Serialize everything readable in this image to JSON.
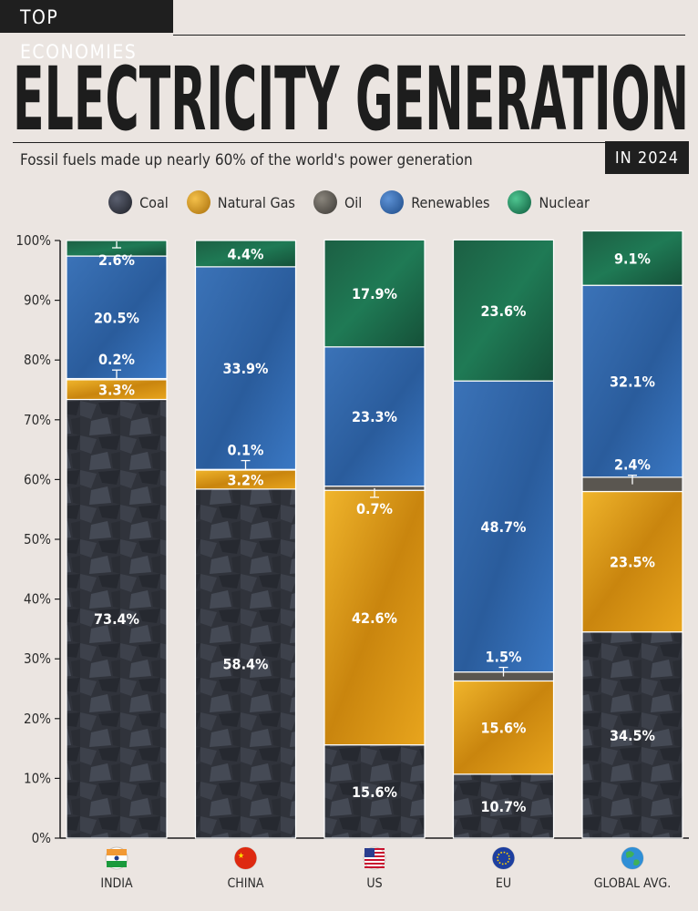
{
  "header": {
    "kicker": "TOP ECONOMIES",
    "title": "ELECTRICITY GENERATION",
    "subtitle": "Fossil fuels made up nearly 60% of the world's power generation",
    "year": "IN 2024"
  },
  "legend": [
    {
      "label": "Coal",
      "color": "#2c2f38",
      "icon": "coal-icon"
    },
    {
      "label": "Natural Gas",
      "color": "#d69a14",
      "icon": "natural-gas-icon"
    },
    {
      "label": "Oil",
      "color": "#5a5650",
      "icon": "oil-icon"
    },
    {
      "label": "Renewables",
      "color": "#2f66a8",
      "icon": "renewables-icon"
    },
    {
      "label": "Nuclear",
      "color": "#1f7a55",
      "icon": "nuclear-icon"
    }
  ],
  "chart_data": {
    "type": "bar",
    "stacked": true,
    "categories": [
      "INDIA",
      "CHINA",
      "US",
      "EU",
      "GLOBAL AVG."
    ],
    "flags": [
      "india-flag-icon",
      "china-flag-icon",
      "us-flag-icon",
      "eu-flag-icon",
      "globe-icon"
    ],
    "series": [
      {
        "name": "Coal",
        "values": [
          73.4,
          58.4,
          15.6,
          10.7,
          34.5
        ],
        "labels": [
          "73.4%",
          "58.4%",
          "15.6%",
          "10.7%",
          "34.5%"
        ],
        "color": "#2f323a"
      },
      {
        "name": "Natural Gas",
        "values": [
          3.3,
          3.2,
          42.6,
          15.6,
          23.5
        ],
        "labels": [
          "3.3%",
          "3.2%",
          "42.6%",
          "15.6%",
          "23.5%"
        ],
        "color": "#d69a14"
      },
      {
        "name": "Oil",
        "values": [
          0.2,
          0.1,
          0.7,
          1.5,
          2.4
        ],
        "labels": [
          "0.2%",
          "0.1%",
          "0.7%",
          "1.5%",
          "2.4%"
        ],
        "color": "#5a5650"
      },
      {
        "name": "Renewables",
        "values": [
          20.5,
          33.9,
          23.3,
          48.7,
          32.1
        ],
        "labels": [
          "20.5%",
          "33.9%",
          "23.3%",
          "48.7%",
          "32.1%"
        ],
        "color": "#2f66a8"
      },
      {
        "name": "Nuclear",
        "values": [
          2.6,
          4.4,
          17.9,
          23.6,
          9.1
        ],
        "labels": [
          "2.6%",
          "4.4%",
          "17.9%",
          "23.6%",
          "9.1%"
        ],
        "color": "#1f6e4e"
      }
    ],
    "yticks": [
      "0%",
      "10%",
      "20%",
      "30%",
      "40%",
      "50%",
      "60%",
      "70%",
      "80%",
      "90%",
      "100%"
    ],
    "ylim": [
      0,
      100
    ]
  }
}
